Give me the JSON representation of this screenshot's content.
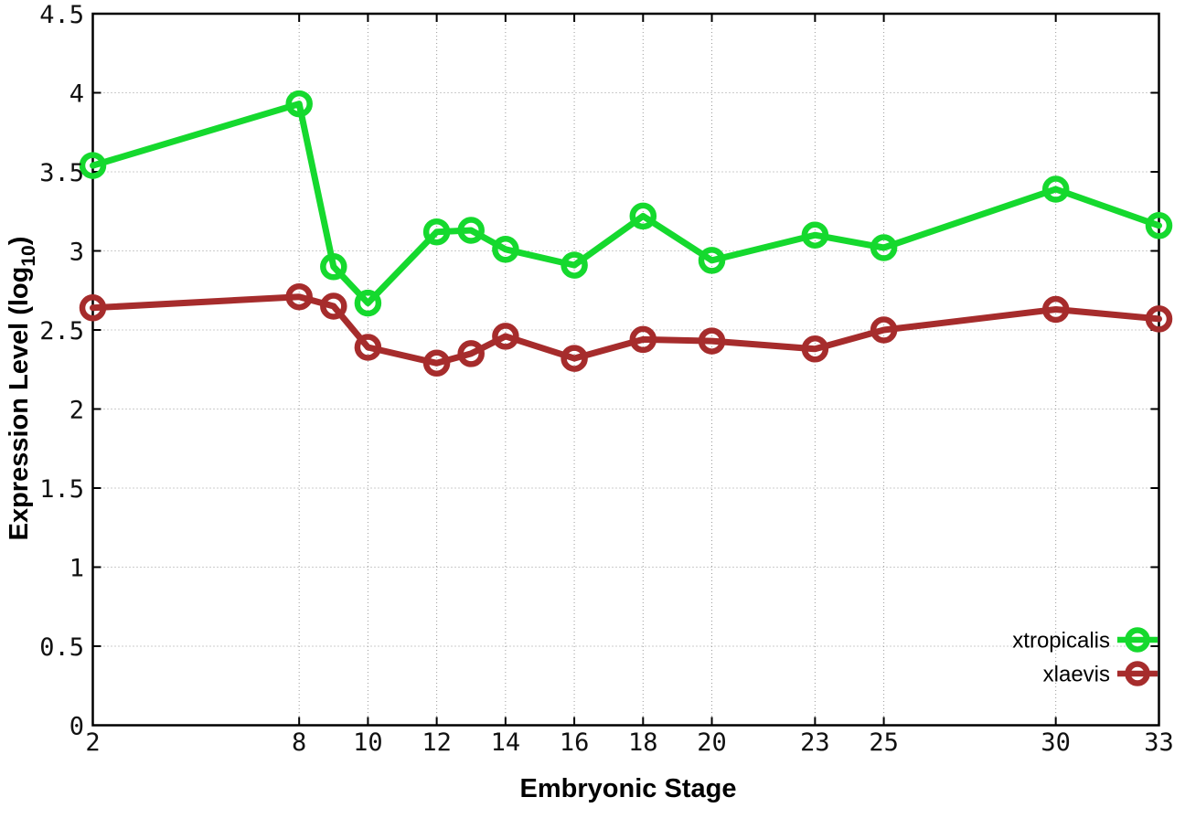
{
  "page": {
    "background": "#ffffff"
  },
  "chart_data": {
    "type": "line",
    "title": "",
    "xlabel": "Embryonic Stage",
    "ylabel": "Expression Level (log10)",
    "ylabel_parts": {
      "main": "Expression Level (log",
      "sub": "10",
      "close": ")"
    },
    "xlim": [
      2,
      33
    ],
    "ylim": [
      0,
      4.5
    ],
    "grid": true,
    "legend_position": "bottom-right",
    "x_ticks": [
      2,
      8,
      10,
      12,
      14,
      16,
      18,
      20,
      23,
      25,
      30,
      33
    ],
    "x_tick_labels": [
      "2",
      "8",
      "10",
      "12",
      "14",
      "16",
      "18",
      "20",
      "23",
      "25",
      "30",
      "33"
    ],
    "y_ticks": [
      0,
      0.5,
      1,
      1.5,
      2,
      2.5,
      3,
      3.5,
      4,
      4.5
    ],
    "y_tick_labels": [
      "0",
      "0.5",
      "1",
      "1.5",
      "2",
      "2.5",
      "3",
      "3.5",
      "4",
      "4.5"
    ],
    "x": [
      2,
      8,
      9,
      10,
      12,
      13,
      14,
      16,
      18,
      20,
      23,
      25,
      30,
      33
    ],
    "series": [
      {
        "name": "xtropicalis",
        "color": "#15d92e",
        "marker": "open-circle",
        "values": [
          3.54,
          3.93,
          2.9,
          2.67,
          3.12,
          3.13,
          3.01,
          2.91,
          3.22,
          2.94,
          3.1,
          3.02,
          3.39,
          3.16
        ]
      },
      {
        "name": "xlaevis",
        "color": "#a62c2c",
        "marker": "open-circle",
        "values": [
          2.64,
          2.71,
          2.65,
          2.39,
          2.29,
          2.35,
          2.46,
          2.32,
          2.44,
          2.43,
          2.38,
          2.5,
          2.63,
          2.57
        ]
      }
    ],
    "colors": {
      "axis": "#000000",
      "grid": "#9a9a9a",
      "tick_label": "#111111",
      "title": "#000000"
    }
  }
}
